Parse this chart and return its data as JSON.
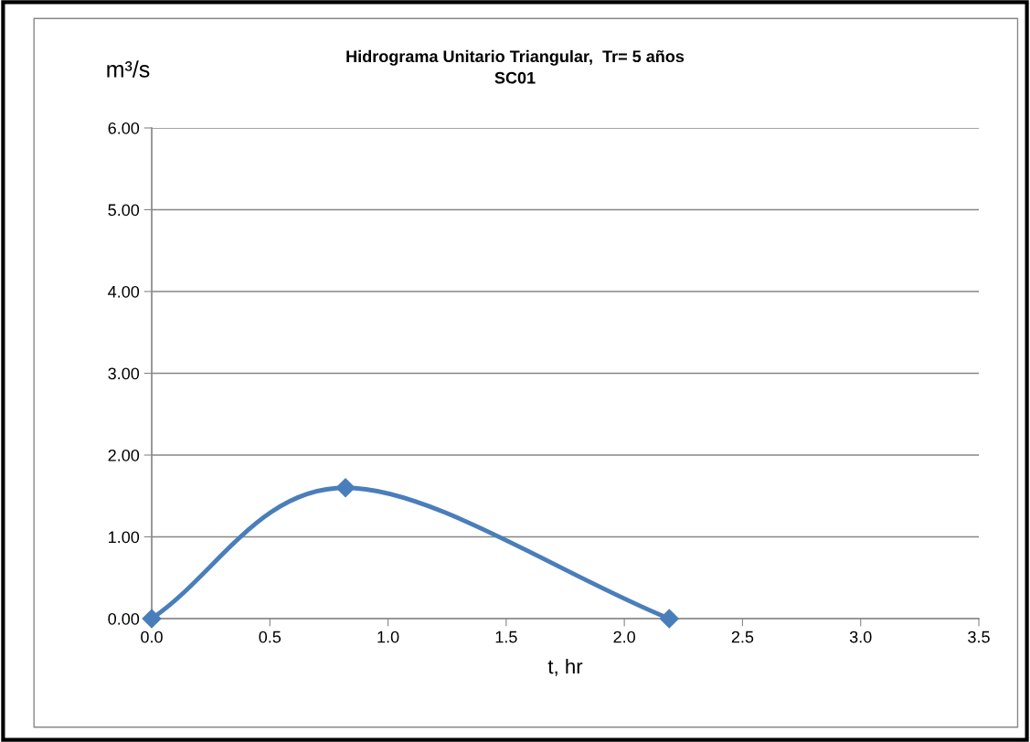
{
  "chart_data": {
    "type": "line",
    "title": "Hidrograma Unitario Triangular,  Tr= 5 años\nSC01",
    "xlabel": "t, hr",
    "ylabel": "m³/s",
    "x": [
      0.0,
      0.82,
      2.19
    ],
    "series": [
      {
        "color": "#4a7ebb",
        "values": [
          0.0,
          1.6,
          0.0
        ]
      }
    ],
    "xlim": [
      0,
      3.5
    ],
    "xticks": [
      {
        "value": 0,
        "label": "0.0"
      },
      {
        "value": 0.5,
        "label": "0.5"
      },
      {
        "value": 1,
        "label": "1.0"
      },
      {
        "value": 1.5,
        "label": "1.5"
      },
      {
        "value": 2,
        "label": "2.0"
      },
      {
        "value": 2.5,
        "label": "2.5"
      },
      {
        "value": 3,
        "label": "3.0"
      },
      {
        "value": 3.5,
        "label": "3.5"
      }
    ],
    "ylim": [
      0,
      6
    ],
    "yticks": [
      {
        "value": 0,
        "label": "0.00"
      },
      {
        "value": 1,
        "label": "1.00"
      },
      {
        "value": 2,
        "label": "2.00"
      },
      {
        "value": 3,
        "label": "3.00"
      },
      {
        "value": 4,
        "label": "4.00"
      },
      {
        "value": 5,
        "label": "5.00"
      },
      {
        "value": 6,
        "label": "6.00"
      }
    ],
    "grid": "y",
    "marker": "diamond",
    "line_style": "solid"
  }
}
